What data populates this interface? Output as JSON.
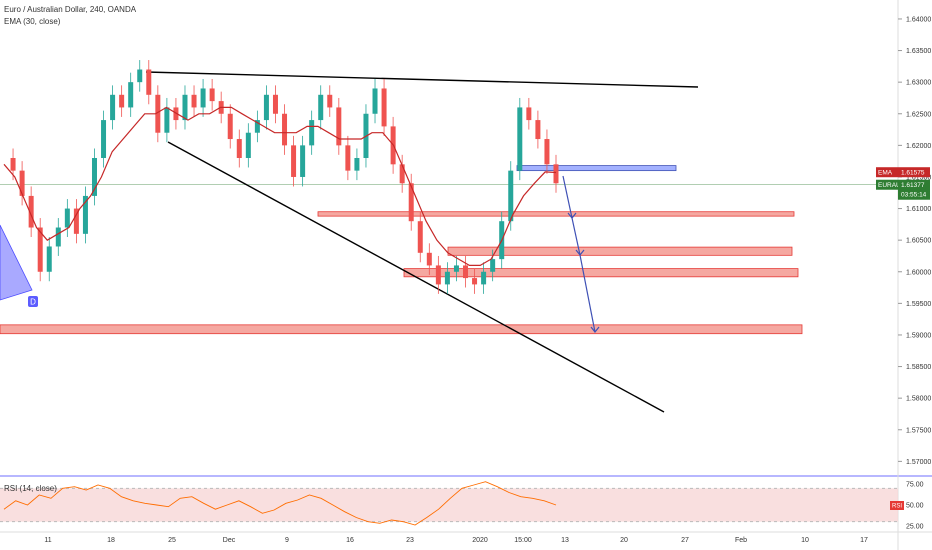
{
  "header": {
    "title": "Euro / Australian Dollar, 240, OANDA",
    "ema_label": "EMA (30, close)",
    "rsi_label": "RSI (14, close)"
  },
  "colors": {
    "up": "#26a69a",
    "down": "#ef5350",
    "ema": "#c62828",
    "price_line": "#2e7d32",
    "zone_red": "#f28b82",
    "zone_blue": "#8c9eff",
    "arrow": "#3f51b5",
    "rsi": "#ff6d00",
    "rsi_band": "#f8d7d7"
  },
  "badges": {
    "ema": "EMA",
    "ema_value": "1.61575",
    "symbol": "EURAUD",
    "price": "1.61377",
    "countdown": "03:55:14",
    "pattern_letter": "D",
    "rsi": "RSI"
  },
  "chart_data": {
    "type": "candlestick",
    "y_axis": {
      "ylim": [
        1.568,
        1.643
      ],
      "ticks": [
        "1.64000",
        "1.63500",
        "1.63000",
        "1.62500",
        "1.62000",
        "1.61500",
        "1.61000",
        "1.60500",
        "1.60000",
        "1.59500",
        "1.59000",
        "1.58500",
        "1.58000",
        "1.57500",
        "1.57000"
      ]
    },
    "x_axis": {
      "ticks": [
        "11",
        "18",
        "25",
        "Dec",
        "9",
        "16",
        "23",
        "2020",
        "15:00",
        "13",
        "20",
        "27",
        "Feb",
        "10",
        "17"
      ]
    },
    "close_path": [
      1.618,
      1.616,
      1.612,
      1.607,
      1.6,
      1.604,
      1.607,
      1.61,
      1.606,
      1.612,
      1.618,
      1.624,
      1.628,
      1.626,
      1.63,
      1.632,
      1.628,
      1.622,
      1.626,
      1.624,
      1.628,
      1.626,
      1.629,
      1.627,
      1.625,
      1.621,
      1.618,
      1.622,
      1.624,
      1.628,
      1.625,
      1.62,
      1.615,
      1.62,
      1.624,
      1.628,
      1.626,
      1.62,
      1.616,
      1.618,
      1.625,
      1.629,
      1.623,
      1.617,
      1.614,
      1.608,
      1.603,
      1.601,
      1.598,
      1.6,
      1.601,
      1.599,
      1.598,
      1.6,
      1.602,
      1.608,
      1.616,
      1.626,
      1.624,
      1.621,
      1.617,
      1.614
    ],
    "ema_path": [
      1.617,
      1.615,
      1.611,
      1.607,
      1.605,
      1.606,
      1.607,
      1.61,
      1.612,
      1.615,
      1.619,
      1.621,
      1.623,
      1.625,
      1.625,
      1.626,
      1.625,
      1.624,
      1.625,
      1.625,
      1.626,
      1.626,
      1.625,
      1.624,
      1.623,
      1.622,
      1.622,
      1.622,
      1.623,
      1.623,
      1.622,
      1.621,
      1.621,
      1.621,
      1.622,
      1.622,
      1.62,
      1.616,
      1.612,
      1.608,
      1.605,
      1.603,
      1.602,
      1.601,
      1.601,
      1.602,
      1.605,
      1.609,
      1.612,
      1.614,
      1.6158,
      1.6157
    ],
    "current_price": 1.61377,
    "ema_value": 1.61575,
    "rsi": {
      "ylim": [
        20,
        80
      ],
      "ticks": [
        "75.00",
        "50.00",
        "25.00"
      ],
      "band": [
        30,
        70
      ],
      "values": [
        45,
        55,
        50,
        62,
        58,
        70,
        72,
        68,
        74,
        70,
        60,
        55,
        52,
        50,
        48,
        58,
        60,
        52,
        45,
        50,
        55,
        48,
        40,
        44,
        52,
        56,
        62,
        58,
        50,
        42,
        35,
        30,
        28,
        32,
        30,
        26,
        35,
        45,
        58,
        70,
        74,
        78,
        72,
        65,
        60,
        58,
        55,
        50
      ]
    }
  }
}
